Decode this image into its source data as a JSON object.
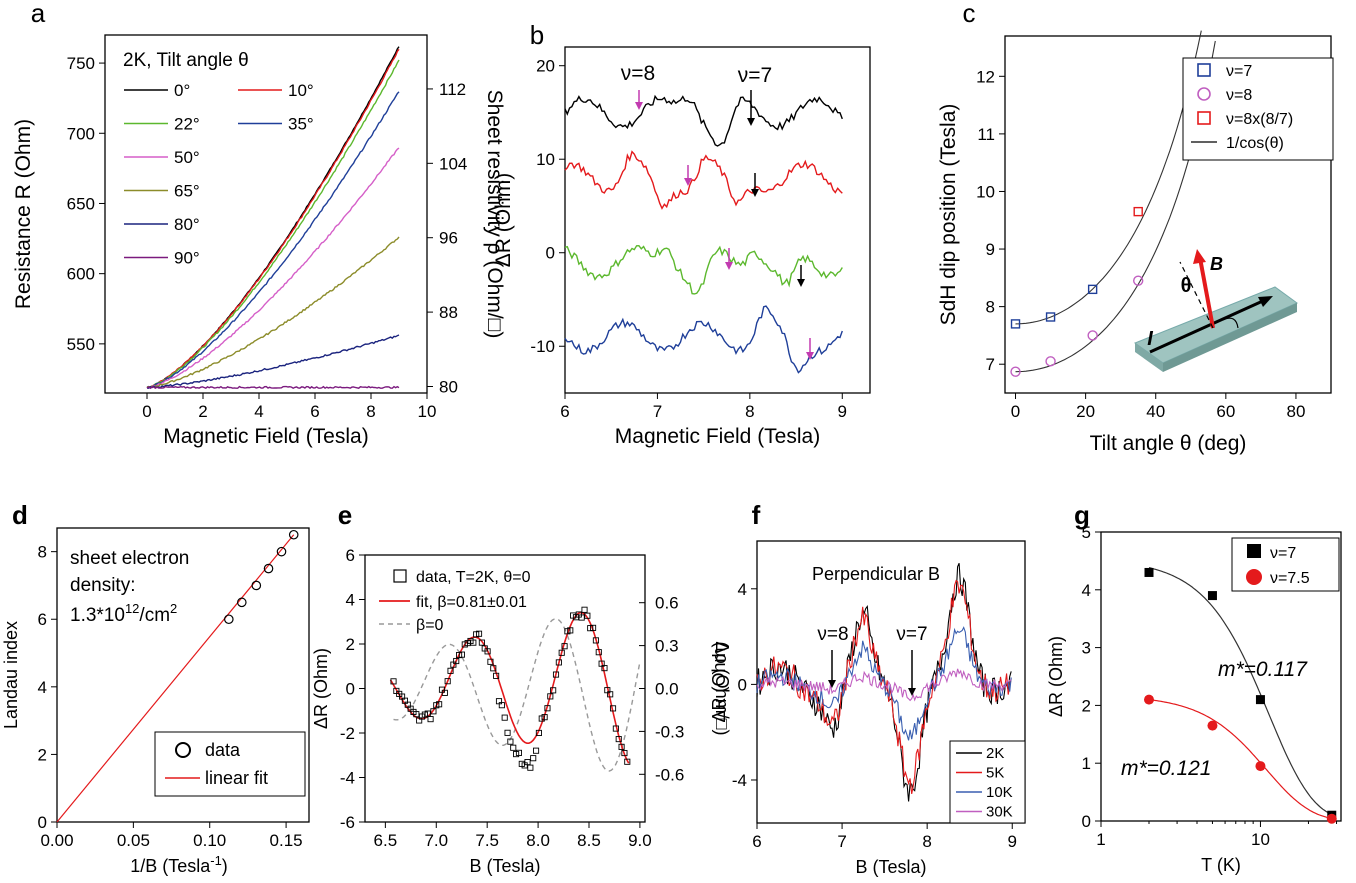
{
  "chart_data": [
    {
      "panel": "a",
      "type": "line",
      "title": "2K, Tilt angle θ",
      "xlabel": "Magnetic Field (Tesla)",
      "ylabel": "Resistance R (Ohm)",
      "y2label": "Sheet resistivity ρ (Ohm/□)",
      "xlim": [
        -1.5,
        10
      ],
      "ylim": [
        515,
        770
      ],
      "y2lim": [
        79.3,
        117.8
      ],
      "xticks": [
        0,
        2,
        4,
        6,
        8,
        10
      ],
      "yticks": [
        550,
        600,
        650,
        700,
        750
      ],
      "y2ticks": [
        80,
        88,
        96,
        104,
        112
      ],
      "legend_placement": "top-left",
      "series": [
        {
          "name": "0°",
          "color": "#000000",
          "end": 762
        },
        {
          "name": "10°",
          "color": "#e41a1c",
          "end": 760
        },
        {
          "name": "22°",
          "color": "#5cb82e",
          "end": 752
        },
        {
          "name": "35°",
          "color": "#1f3f99",
          "end": 730
        },
        {
          "name": "50°",
          "color": "#d55fc8",
          "end": 690
        },
        {
          "name": "65°",
          "color": "#8c8c2a",
          "end": 626
        },
        {
          "name": "80°",
          "color": "#1a237e",
          "end": 556
        },
        {
          "name": "90°",
          "color": "#7b1a7e",
          "end": 519
        }
      ]
    },
    {
      "panel": "b",
      "type": "line",
      "xlabel": "Magnetic Field (Tesla)",
      "ylabel": "ΔR (Ohm)",
      "xlim": [
        6,
        9.3
      ],
      "ylim": [
        -15,
        22
      ],
      "xticks": [
        6,
        7,
        8,
        9
      ],
      "yticks": [
        -10,
        0,
        10,
        20
      ],
      "annotations": [
        "ν=8",
        "ν=7"
      ],
      "series": [
        {
          "color": "#000000",
          "offset": 15,
          "dips": [
            7.7
          ]
        },
        {
          "color": "#e41a1c",
          "offset": 8,
          "dips": [
            7.05,
            7.85
          ]
        },
        {
          "color": "#5cb82e",
          "offset": -1,
          "dips": [
            7.45,
            8.4
          ]
        },
        {
          "color": "#1f3f99",
          "offset": -9,
          "dips": [
            8.5
          ]
        }
      ]
    },
    {
      "panel": "c",
      "type": "scatter",
      "xlabel": "Tilt angle θ (deg)",
      "ylabel": "SdH dip position (Tesla)",
      "xlim": [
        -3,
        90
      ],
      "ylim": [
        6.5,
        12.7
      ],
      "xticks": [
        0,
        20,
        40,
        60,
        80
      ],
      "yticks": [
        7,
        8,
        9,
        10,
        11,
        12
      ],
      "legend_placement": "top-right",
      "series": [
        {
          "name": "ν=7",
          "marker": "square",
          "color": "#1f3f99",
          "x": [
            0,
            10,
            22
          ],
          "y": [
            7.7,
            7.82,
            8.3
          ]
        },
        {
          "name": "ν=8",
          "marker": "circle",
          "color": "#c05fc0",
          "x": [
            0,
            10,
            22,
            35
          ],
          "y": [
            6.87,
            7.05,
            7.5,
            8.45
          ]
        },
        {
          "name": "ν=8x(8/7)",
          "marker": "square",
          "color": "#e41a1c",
          "x": [
            35
          ],
          "y": [
            9.65
          ]
        },
        {
          "name": "1/cos(θ)",
          "marker": "line",
          "color": "#000000"
        }
      ],
      "inset_labels": [
        "B",
        "θ",
        "I"
      ]
    },
    {
      "panel": "d",
      "type": "scatter",
      "xlabel": "1/B (Tesla",
      "xlabel_sup": "-1",
      "ylabel": "Landau index",
      "xlim": [
        0,
        0.165
      ],
      "ylim": [
        0,
        8.7
      ],
      "xticks": [
        0.0,
        0.05,
        0.1,
        0.15
      ],
      "xtick_labels": [
        "0.00",
        "0.05",
        "0.10",
        "0.15"
      ],
      "yticks": [
        0,
        2,
        4,
        6,
        8
      ],
      "note_lines": [
        "sheet electron",
        "density:",
        "1.3*10",
        "12",
        "/cm",
        "2"
      ],
      "legend_placement": "bottom-right",
      "series": [
        {
          "name": "data",
          "marker": "circle",
          "color": "#000000",
          "x": [
            0.1125,
            0.121,
            0.1305,
            0.1385,
            0.147,
            0.155
          ],
          "y": [
            6,
            6.5,
            7,
            7.5,
            8,
            8.5
          ]
        },
        {
          "name": "linear fit",
          "marker": "line",
          "color": "#e41a1c",
          "x": [
            0,
            0.155
          ],
          "y": [
            0,
            8.5
          ]
        }
      ]
    },
    {
      "panel": "e",
      "type": "scatter",
      "xlabel": "B (Tesla)",
      "ylabel": "ΔR (Ohm)",
      "y2label": "Δρ (Ohm/□)",
      "xlim": [
        6.3,
        9.05
      ],
      "ylim": [
        -6,
        6
      ],
      "y2ticks": [
        -0.6,
        -0.3,
        0.0,
        0.3,
        0.6
      ],
      "y2tick_labels": [
        "-0.6",
        "-0.3",
        "0.0",
        "0.3",
        "0.6"
      ],
      "y2_per_y": 0.1556,
      "xticks": [
        6.5,
        7.0,
        7.5,
        8.0,
        8.5,
        9.0
      ],
      "xtick_labels": [
        "6.5",
        "7.0",
        "7.5",
        "8.0",
        "8.5",
        "9.0"
      ],
      "yticks": [
        -6,
        -4,
        -2,
        0,
        2,
        4,
        6
      ],
      "legend": [
        "data, T=2K, θ=0",
        "fit, β=0.81±0.01",
        "β=0"
      ],
      "series": [
        {
          "name": "data",
          "marker": "square",
          "color": "#000000"
        },
        {
          "name": "fit",
          "marker": "line",
          "color": "#e41a1c",
          "minima": [
            6.85,
            7.85
          ],
          "maxima": [
            7.3,
            8.4
          ]
        },
        {
          "name": "β=0",
          "marker": "dashed",
          "color": "#999999"
        }
      ]
    },
    {
      "panel": "f",
      "type": "line",
      "title": "Perpendicular B",
      "xlabel": "B (Tesla)",
      "ylabel": "ΔR (Ohm)",
      "xlim": [
        6,
        9.15
      ],
      "ylim": [
        -5.8,
        6
      ],
      "xticks": [
        6,
        7,
        8,
        9
      ],
      "yticks": [
        -4,
        0,
        4
      ],
      "annotations": [
        "ν=8",
        "ν=7"
      ],
      "legend_placement": "bottom-right",
      "series": [
        {
          "name": "2K",
          "color": "#000000",
          "amp": 1.0
        },
        {
          "name": "5K",
          "color": "#e41a1c",
          "amp": 0.92
        },
        {
          "name": "10K",
          "color": "#3a5fb0",
          "amp": 0.5
        },
        {
          "name": "30K",
          "color": "#c05fc0",
          "amp": 0.12
        }
      ]
    },
    {
      "panel": "g",
      "type": "scatter",
      "xlabel": "T (K)",
      "ylabel": "ΔR (Ohm)",
      "xscale": "log",
      "xlim": [
        1,
        32
      ],
      "ylim": [
        0,
        5
      ],
      "xticks": [
        1,
        10
      ],
      "yticks": [
        0,
        1,
        2,
        3,
        4,
        5
      ],
      "legend_placement": "top-right",
      "annotations": [
        "m*=0.117",
        "m*=0.121"
      ],
      "series": [
        {
          "name": "ν=7",
          "marker": "square",
          "color": "#000000",
          "x": [
            2,
            5,
            10,
            28
          ],
          "y": [
            4.3,
            3.9,
            2.1,
            0.1
          ]
        },
        {
          "name": "ν=7.5",
          "marker": "circle",
          "color": "#e41a1c",
          "x": [
            2,
            5,
            10,
            28
          ],
          "y": [
            2.1,
            1.65,
            0.95,
            0.04
          ]
        }
      ]
    }
  ]
}
